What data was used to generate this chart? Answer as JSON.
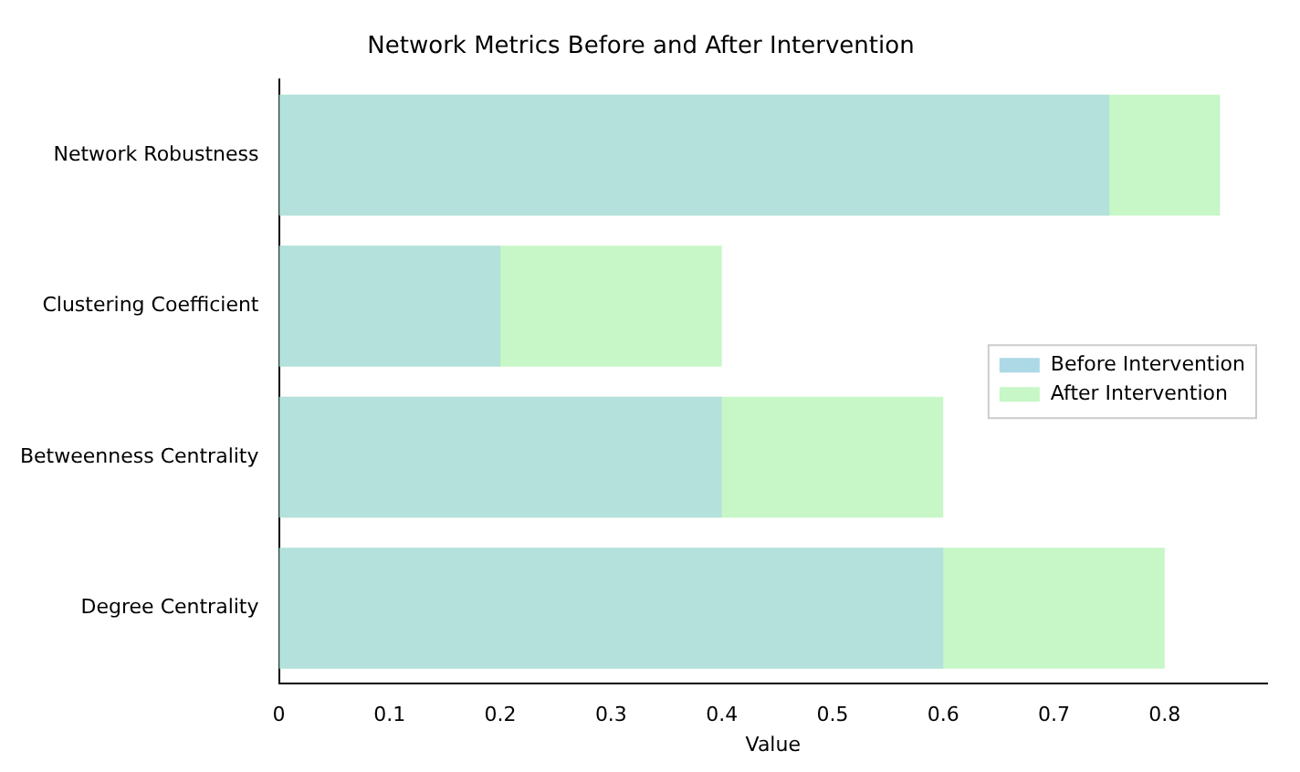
{
  "chart_data": {
    "type": "bar",
    "orientation": "horizontal",
    "title": "Network Metrics Before and After Intervention",
    "xlabel": "Value",
    "categories": [
      "Network Robustness",
      "Clustering Coefficient",
      "Betweenness Centrality",
      "Degree Centrality"
    ],
    "series": [
      {
        "name": "Before Intervention",
        "color": "#add8e6",
        "values": [
          0.75,
          0.2,
          0.4,
          0.6
        ]
      },
      {
        "name": "After Intervention",
        "color": "#90ee90",
        "values": [
          0.85,
          0.4,
          0.6,
          0.8
        ]
      }
    ],
    "xlim": [
      0,
      0.8925
    ],
    "xticks": [
      0,
      0.1,
      0.2,
      0.3,
      0.4,
      0.5,
      0.6,
      0.7,
      0.8
    ],
    "grid": false,
    "legend": "center right"
  }
}
